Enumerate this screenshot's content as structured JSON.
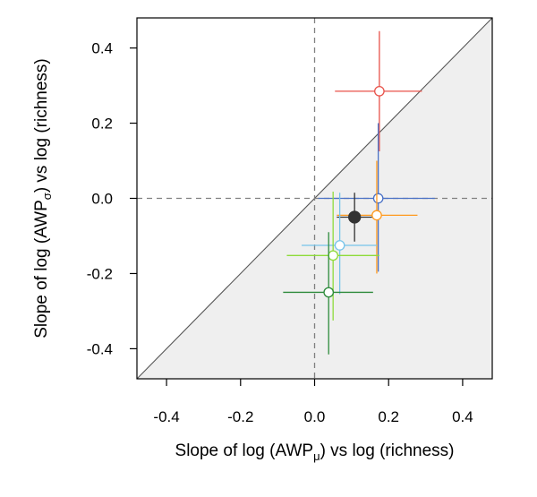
{
  "chart_data": {
    "type": "scatter",
    "title": "",
    "xlabel": {
      "prefix": "Slope of log (AWP",
      "subscript": "μ",
      "suffix": ") vs log (richness)"
    },
    "ylabel": {
      "prefix": "Slope of log (AWP",
      "subscript": "σ",
      "suffix": ") vs log (richness)"
    },
    "xlim": [
      -0.48,
      0.48
    ],
    "ylim": [
      -0.48,
      0.48
    ],
    "x_ticks": [
      -0.4,
      -0.2,
      0.0,
      0.2,
      0.4
    ],
    "y_ticks": [
      -0.4,
      -0.2,
      0.0,
      0.2,
      0.4
    ],
    "x_tick_labels": [
      "-0.4",
      "-0.2",
      "0.0",
      "0.2",
      "0.4"
    ],
    "y_tick_labels": [
      "-0.4",
      "-0.2",
      "0.0",
      "0.2",
      "0.4"
    ],
    "grid": false,
    "legend": null,
    "reference_lines": [
      {
        "type": "vertical",
        "x": 0.0,
        "style": "dashed"
      },
      {
        "type": "horizontal",
        "y": 0.0,
        "style": "dashed"
      },
      {
        "type": "identity",
        "style": "solid",
        "shade_below": true
      }
    ],
    "colors": {
      "shade": "#efefef",
      "axis": "#000000",
      "reference": "#808080"
    },
    "points": [
      {
        "color": "#e8524a",
        "filled": false,
        "x": 0.175,
        "x_low": 0.055,
        "x_high": 0.29,
        "y": 0.285,
        "y_low": 0.125,
        "y_high": 0.445
      },
      {
        "color": "#4b72c6",
        "filled": false,
        "x": 0.172,
        "x_low": 0.01,
        "x_high": 0.325,
        "y": 0.0,
        "y_low": -0.195,
        "y_high": 0.2
      },
      {
        "color": "#ff9a1f",
        "filled": false,
        "x": 0.168,
        "x_low": 0.06,
        "x_high": 0.278,
        "y": -0.045,
        "y_low": -0.2,
        "y_high": 0.1
      },
      {
        "color": "#333333",
        "filled": true,
        "x": 0.108,
        "x_low": 0.06,
        "x_high": 0.155,
        "y": -0.05,
        "y_low": -0.115,
        "y_high": 0.015
      },
      {
        "color": "#76c4ea",
        "filled": false,
        "x": 0.068,
        "x_low": -0.035,
        "x_high": 0.168,
        "y": -0.125,
        "y_low": -0.255,
        "y_high": 0.015
      },
      {
        "color": "#8edb3a",
        "filled": false,
        "x": 0.05,
        "x_low": -0.075,
        "x_high": 0.175,
        "y": -0.152,
        "y_low": -0.325,
        "y_high": 0.018
      },
      {
        "color": "#2e8b3c",
        "filled": false,
        "x": 0.038,
        "x_low": -0.085,
        "x_high": 0.158,
        "y": -0.25,
        "y_low": -0.415,
        "y_high": -0.09
      }
    ]
  }
}
